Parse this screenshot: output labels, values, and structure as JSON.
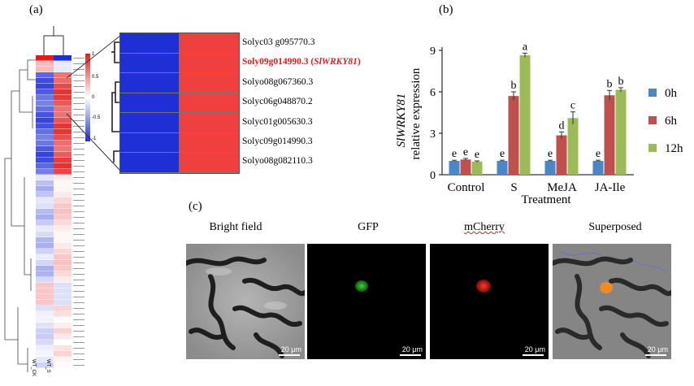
{
  "panels": {
    "a": "(a)",
    "b": "(b)",
    "c": "(c)"
  },
  "heatmap": {
    "columns": [
      "WT_CK",
      "WT_S"
    ],
    "scale_ticks": [
      "1",
      "0.5",
      "0",
      "-0.5",
      "-1"
    ],
    "colors": {
      "high": "#e31b1b",
      "mid": "#ffffff",
      "low": "#1f2fd6"
    },
    "zoom_genes": [
      {
        "name": "Solyc03 g095770.3",
        "highlight": false
      },
      {
        "name": "Soly09g014990.3 (",
        "italic": "SlWRKY81",
        "suffix": ")",
        "highlight": true
      },
      {
        "name": "Solyo08g067360.3",
        "highlight": false
      },
      {
        "name": "Solyc06g048870.2",
        "highlight": false
      },
      {
        "name": "Solyc01g005630.3",
        "highlight": false
      },
      {
        "name": "Solyc09g014990.3",
        "highlight": false
      },
      {
        "name": "Solyo08g082110.3",
        "highlight": false
      }
    ]
  },
  "chart_data": {
    "type": "bar",
    "categories": [
      "Control",
      "S",
      "MeJA",
      "JA-Ile"
    ],
    "series": [
      {
        "name": "0h",
        "color": "#4a86c8",
        "values": [
          1.0,
          1.0,
          1.0,
          1.0
        ],
        "errors": [
          0.05,
          0.05,
          0.05,
          0.05
        ],
        "letters": [
          "e",
          "e",
          "e",
          "e"
        ]
      },
      {
        "name": "6h",
        "color": "#c0504d",
        "values": [
          1.1,
          5.7,
          2.85,
          5.75
        ],
        "errors": [
          0.08,
          0.3,
          0.25,
          0.35
        ],
        "letters": [
          "e",
          "b",
          "d",
          "b"
        ]
      },
      {
        "name": "12h",
        "color": "#9bbb59",
        "values": [
          0.95,
          8.65,
          4.1,
          6.15
        ],
        "errors": [
          0.05,
          0.15,
          0.45,
          0.15
        ],
        "letters": [
          "e",
          "a",
          "c",
          "b"
        ]
      }
    ],
    "xlabel": "Treatment",
    "ylabel_italic": "SlWRKY81",
    "ylabel": "relative expression",
    "ylim": [
      0,
      9
    ],
    "yticks": [
      0,
      3,
      6,
      9
    ],
    "grid": false,
    "legend": "right"
  },
  "micrographs": {
    "titles": [
      "Bright field",
      "GFP",
      "mCherry",
      "Superposed"
    ],
    "scale_label": "20 μm"
  }
}
